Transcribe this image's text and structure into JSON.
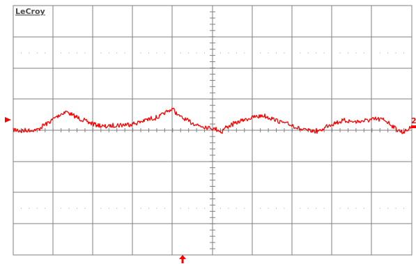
{
  "brand": "LeCroy",
  "channel_label": "2",
  "colors": {
    "grid": "#7f7f7f",
    "dots": "#9a9a9a",
    "trace": "#ff0000",
    "brand": "#4a4a4a",
    "background": "#ffffff"
  },
  "grid": {
    "h_divisions": 10,
    "v_divisions": 8
  },
  "markers": {
    "trigger_level_icon": "right-pointing-triangle",
    "trigger_position_icon": "up-arrow",
    "channel_icon": "channel-number-tag"
  }
}
